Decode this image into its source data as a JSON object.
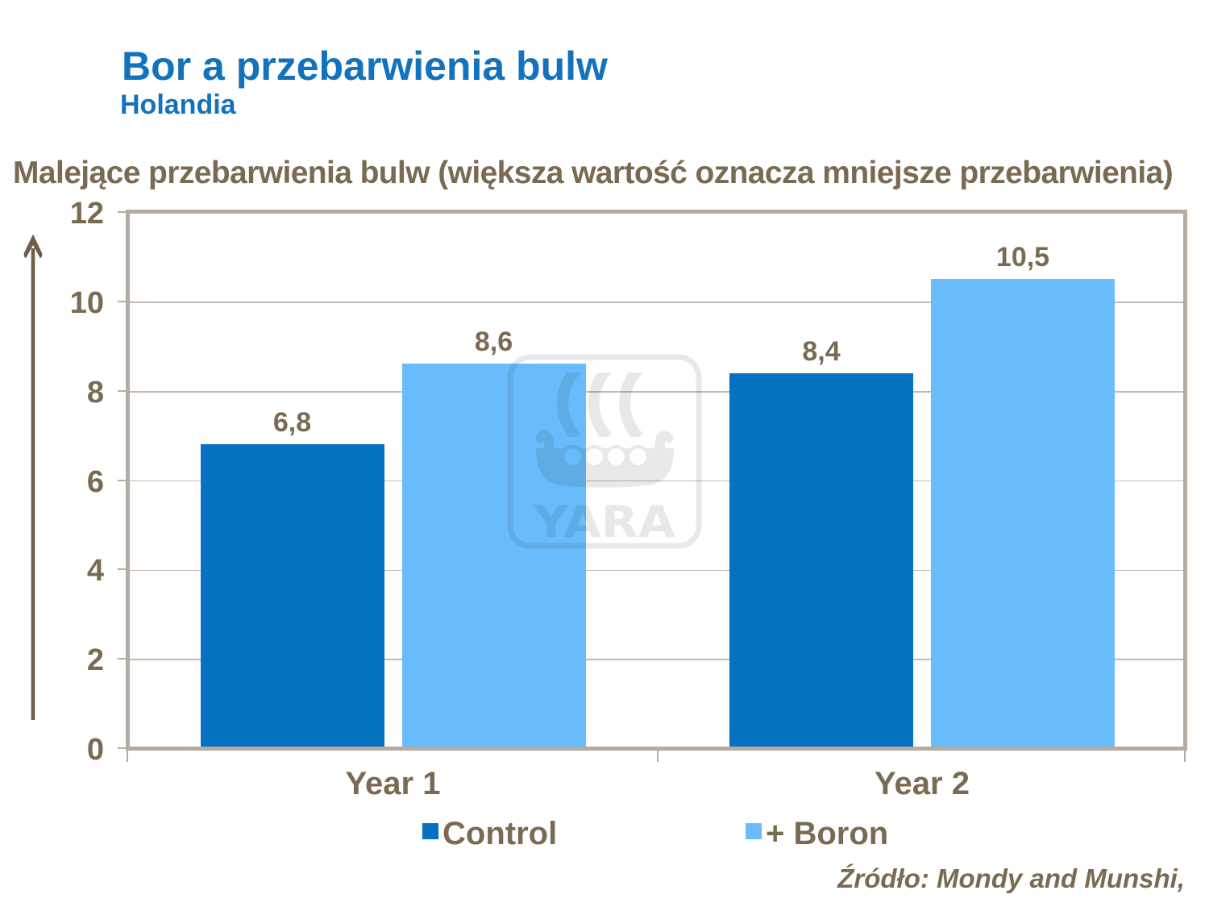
{
  "slide": {
    "title": "Bor a przebarwienia bulw",
    "subtitle": "Holandia",
    "heading": "Malejące przebarwienia bulw (większa wartość oznacza mniejsze przebarwienia)",
    "source_note": "Źródło: Mondy and Munshi,",
    "watermark_text": "YARA"
  },
  "colors": {
    "title_blue": "#1272BD",
    "text_brown": "#7A6A52",
    "axis": "#B5ABA0",
    "gridline": "#C3BAAF",
    "arrow": "#6E6048",
    "watermark_gray": "#E8E8E8",
    "control_bar": "#0572C1",
    "boron_bar": "#68BCFB"
  },
  "chart_data": {
    "type": "bar",
    "title": "Malejące przebarwienia bulw (większa wartość oznacza mniejsze przebarwienia)",
    "categories": [
      "Year 1",
      "Year 2"
    ],
    "series": [
      {
        "name": "Control",
        "color": "#0572C1",
        "values": [
          6.8,
          8.4
        ],
        "value_labels": [
          "6,8",
          "8,4"
        ]
      },
      {
        "name": "+ Boron",
        "color": "#68BCFB",
        "values": [
          8.6,
          10.5
        ],
        "value_labels": [
          "8,6",
          "10,5"
        ]
      }
    ],
    "ylim": [
      0,
      12
    ],
    "ytick_interval": 2,
    "ytick_labels": [
      "0",
      "2",
      "4",
      "6",
      "8",
      "10",
      "12"
    ],
    "xlabel": "",
    "ylabel": "",
    "grid": true,
    "legend_position": "bottom",
    "decimal_separator": ","
  }
}
